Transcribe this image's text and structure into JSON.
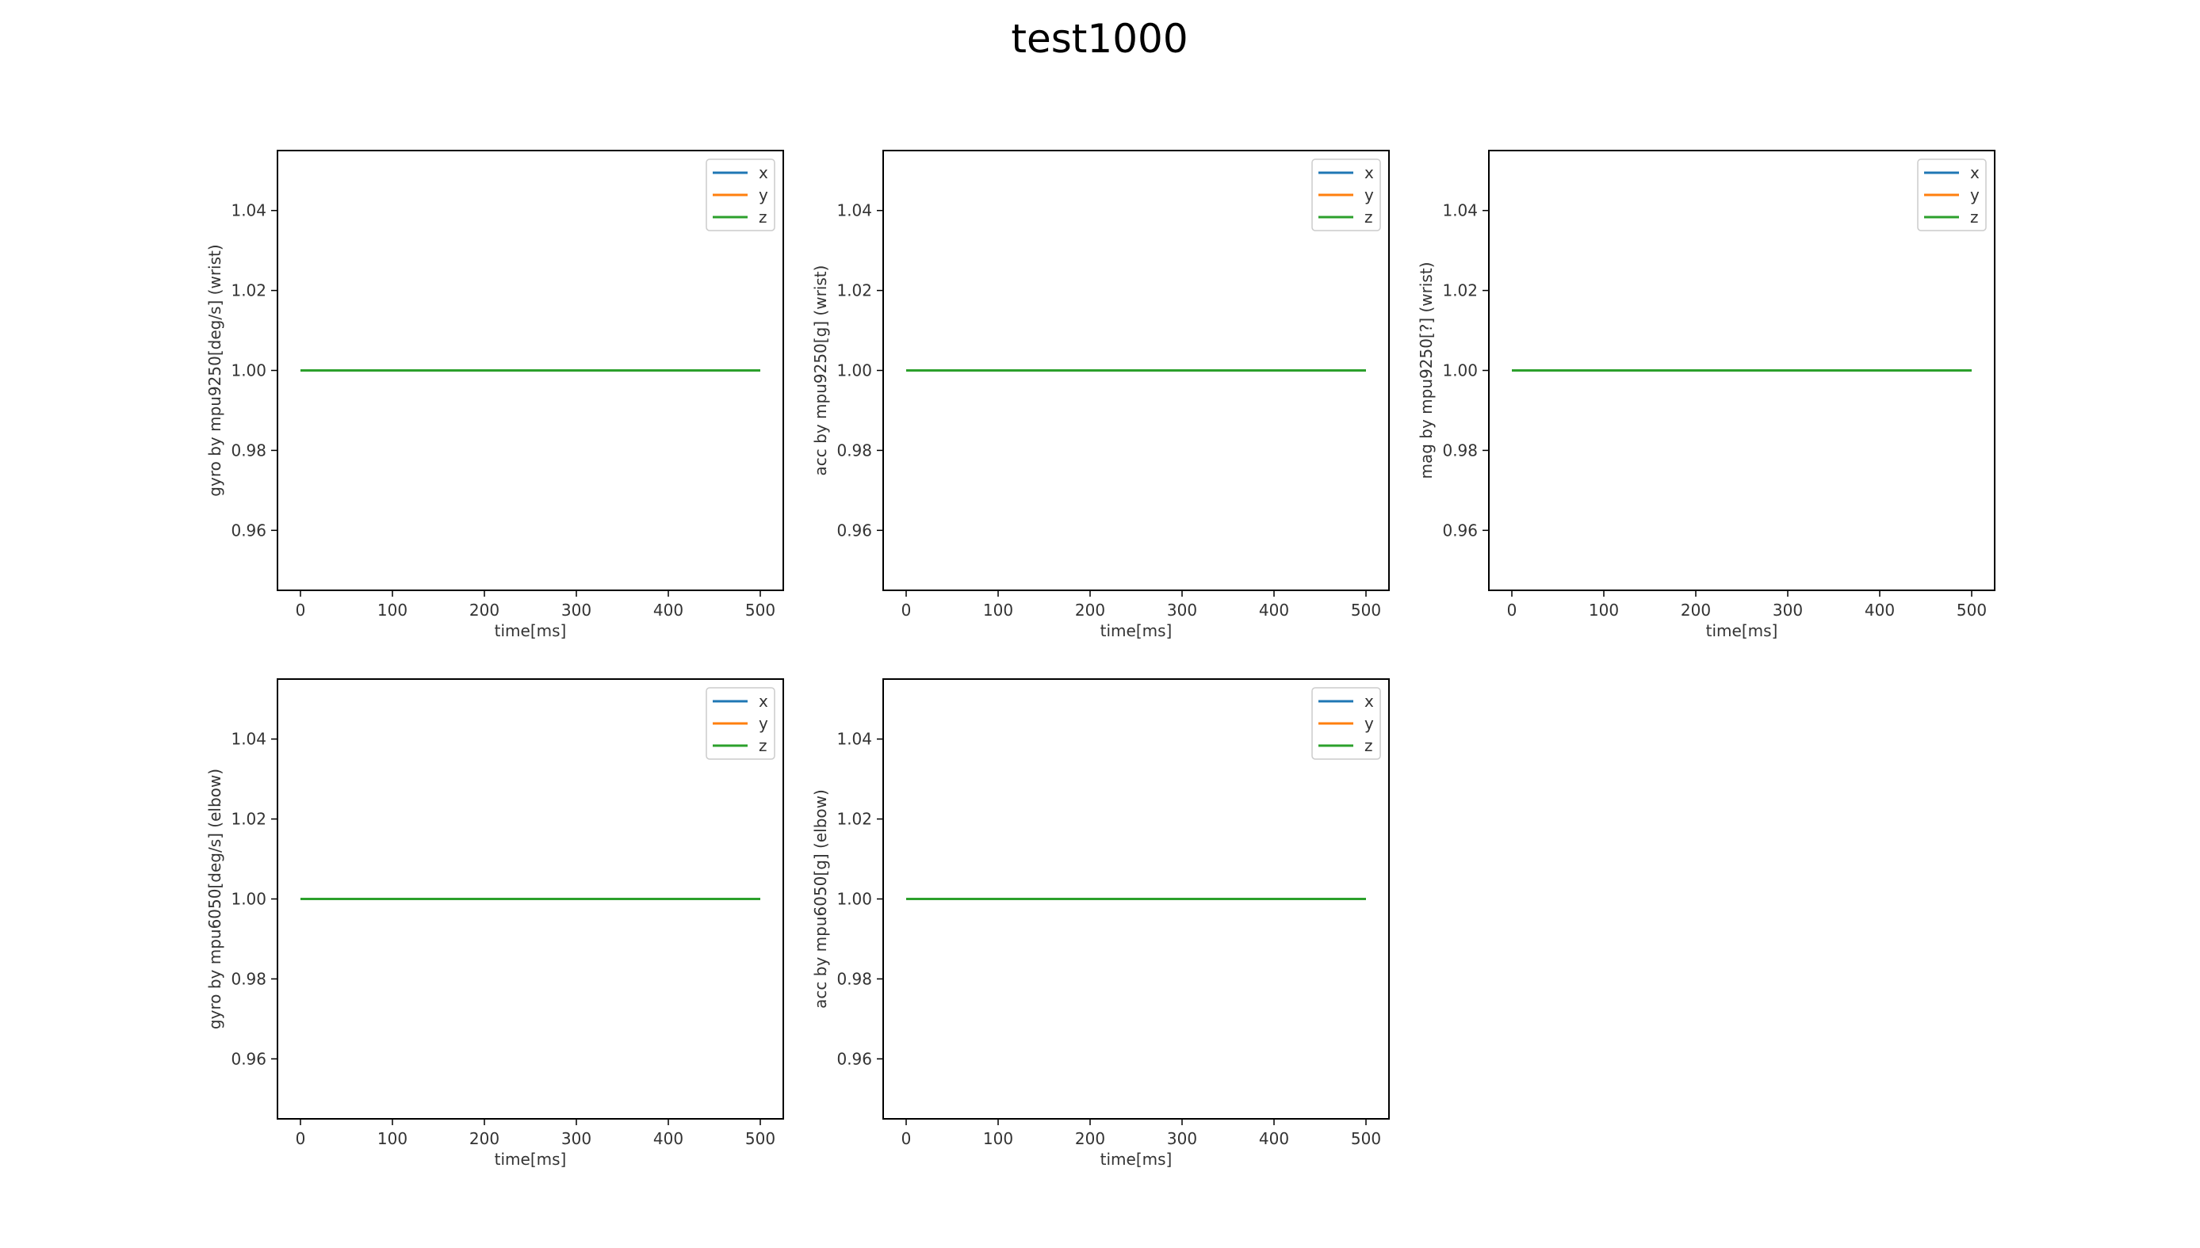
{
  "figure": {
    "title": "test1000",
    "background": "#ffffff"
  },
  "chart_data": [
    {
      "type": "line",
      "xlabel": "time[ms]",
      "ylabel": "gyro by mpu9250[deg/s] (wrist)",
      "xlim": [
        -25,
        525
      ],
      "ylim": [
        0.945,
        1.055
      ],
      "xticks": [
        0,
        100,
        200,
        300,
        400,
        500
      ],
      "yticks": [
        0.96,
        0.98,
        1.0,
        1.02,
        1.04
      ],
      "ytick_labels": [
        "0.96",
        "0.98",
        "1.00",
        "1.02",
        "1.04"
      ],
      "legend": "top-right",
      "grid": false,
      "series": [
        {
          "name": "x",
          "color": "#1f77b4",
          "x": [
            0,
            500
          ],
          "y": [
            1.0,
            1.0
          ]
        },
        {
          "name": "y",
          "color": "#ff7f0e",
          "x": [
            0,
            500
          ],
          "y": [
            1.0,
            1.0
          ]
        },
        {
          "name": "z",
          "color": "#2ca02c",
          "x": [
            0,
            500
          ],
          "y": [
            1.0,
            1.0
          ]
        }
      ]
    },
    {
      "type": "line",
      "xlabel": "time[ms]",
      "ylabel": "acc by mpu9250[g] (wrist)",
      "xlim": [
        -25,
        525
      ],
      "ylim": [
        0.945,
        1.055
      ],
      "xticks": [
        0,
        100,
        200,
        300,
        400,
        500
      ],
      "yticks": [
        0.96,
        0.98,
        1.0,
        1.02,
        1.04
      ],
      "ytick_labels": [
        "0.96",
        "0.98",
        "1.00",
        "1.02",
        "1.04"
      ],
      "legend": "top-right",
      "grid": false,
      "series": [
        {
          "name": "x",
          "color": "#1f77b4",
          "x": [
            0,
            500
          ],
          "y": [
            1.0,
            1.0
          ]
        },
        {
          "name": "y",
          "color": "#ff7f0e",
          "x": [
            0,
            500
          ],
          "y": [
            1.0,
            1.0
          ]
        },
        {
          "name": "z",
          "color": "#2ca02c",
          "x": [
            0,
            500
          ],
          "y": [
            1.0,
            1.0
          ]
        }
      ]
    },
    {
      "type": "line",
      "xlabel": "time[ms]",
      "ylabel": "mag by mpu9250[?] (wrist)",
      "xlim": [
        -25,
        525
      ],
      "ylim": [
        0.945,
        1.055
      ],
      "xticks": [
        0,
        100,
        200,
        300,
        400,
        500
      ],
      "yticks": [
        0.96,
        0.98,
        1.0,
        1.02,
        1.04
      ],
      "ytick_labels": [
        "0.96",
        "0.98",
        "1.00",
        "1.02",
        "1.04"
      ],
      "legend": "top-right",
      "grid": false,
      "series": [
        {
          "name": "x",
          "color": "#1f77b4",
          "x": [
            0,
            500
          ],
          "y": [
            1.0,
            1.0
          ]
        },
        {
          "name": "y",
          "color": "#ff7f0e",
          "x": [
            0,
            500
          ],
          "y": [
            1.0,
            1.0
          ]
        },
        {
          "name": "z",
          "color": "#2ca02c",
          "x": [
            0,
            500
          ],
          "y": [
            1.0,
            1.0
          ]
        }
      ]
    },
    {
      "type": "line",
      "xlabel": "time[ms]",
      "ylabel": "gyro by mpu6050[deg/s] (elbow)",
      "xlim": [
        -25,
        525
      ],
      "ylim": [
        0.945,
        1.055
      ],
      "xticks": [
        0,
        100,
        200,
        300,
        400,
        500
      ],
      "yticks": [
        0.96,
        0.98,
        1.0,
        1.02,
        1.04
      ],
      "ytick_labels": [
        "0.96",
        "0.98",
        "1.00",
        "1.02",
        "1.04"
      ],
      "legend": "top-right",
      "grid": false,
      "series": [
        {
          "name": "x",
          "color": "#1f77b4",
          "x": [
            0,
            500
          ],
          "y": [
            1.0,
            1.0
          ]
        },
        {
          "name": "y",
          "color": "#ff7f0e",
          "x": [
            0,
            500
          ],
          "y": [
            1.0,
            1.0
          ]
        },
        {
          "name": "z",
          "color": "#2ca02c",
          "x": [
            0,
            500
          ],
          "y": [
            1.0,
            1.0
          ]
        }
      ]
    },
    {
      "type": "line",
      "xlabel": "time[ms]",
      "ylabel": "acc by mpu6050[g] (elbow)",
      "xlim": [
        -25,
        525
      ],
      "ylim": [
        0.945,
        1.055
      ],
      "xticks": [
        0,
        100,
        200,
        300,
        400,
        500
      ],
      "yticks": [
        0.96,
        0.98,
        1.0,
        1.02,
        1.04
      ],
      "ytick_labels": [
        "0.96",
        "0.98",
        "1.00",
        "1.02",
        "1.04"
      ],
      "legend": "top-right",
      "grid": false,
      "series": [
        {
          "name": "x",
          "color": "#1f77b4",
          "x": [
            0,
            500
          ],
          "y": [
            1.0,
            1.0
          ]
        },
        {
          "name": "y",
          "color": "#ff7f0e",
          "x": [
            0,
            500
          ],
          "y": [
            1.0,
            1.0
          ]
        },
        {
          "name": "z",
          "color": "#2ca02c",
          "x": [
            0,
            500
          ],
          "y": [
            1.0,
            1.0
          ]
        }
      ]
    }
  ]
}
